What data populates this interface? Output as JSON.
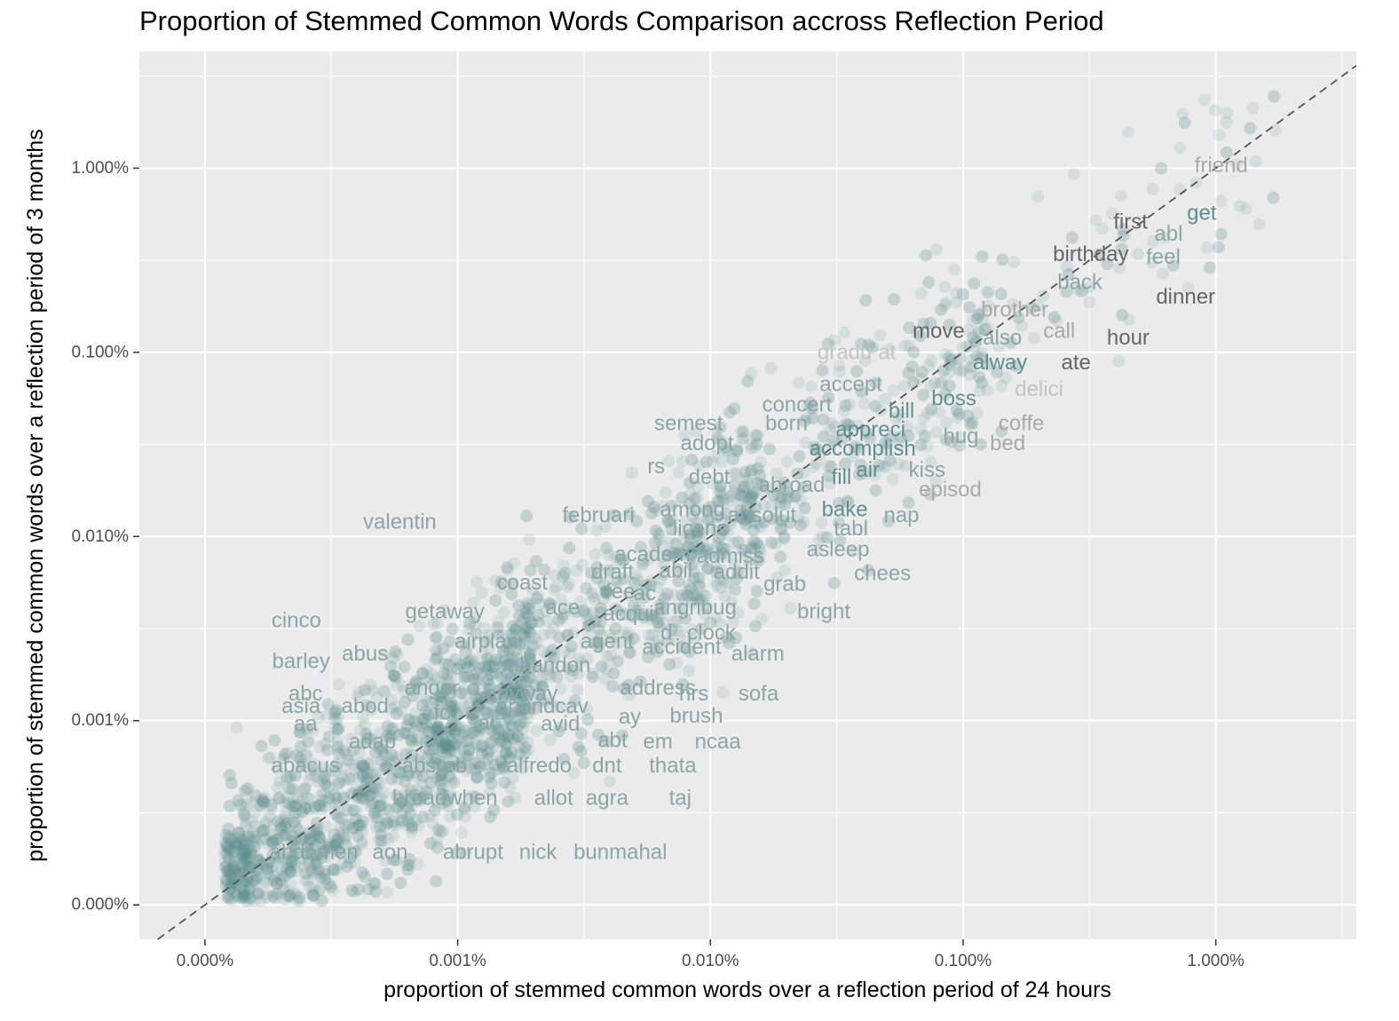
{
  "chart_data": {
    "type": "scatter",
    "title": "Proportion of Stemmed Common Words Comparison accross Reflection Period",
    "xlabel": "proportion of stemmed common words over a reflection period of 24 hours",
    "ylabel": "proportion of stemmed common words over a reflection period of 3 months",
    "x_scale": "log10",
    "y_scale": "log10",
    "x_ticks": [
      0.0001,
      0.001,
      0.01,
      0.1,
      1.0
    ],
    "x_tick_labels": [
      "0.000%",
      "0.001%",
      "0.010%",
      "0.100%",
      "1.000%"
    ],
    "y_ticks": [
      0.0001,
      0.001,
      0.01,
      0.1,
      1.0
    ],
    "y_tick_labels": [
      "0.000%",
      "0.001%",
      "0.010%",
      "0.100%",
      "1.000%"
    ],
    "xlim": [
      5.5e-05,
      3.6
    ],
    "ylim": [
      6.5e-05,
      4.3
    ],
    "grid": true,
    "reference_line": "y = x (dashed)",
    "point_color": "#5f8f8f",
    "point_opacity": 0.14,
    "background_color": "#ebebeb",
    "approx_point_count": 3000,
    "labeled_words": [
      {
        "word": "friend",
        "x": 1.05,
        "y": 1.03,
        "color": "#a9a9a9"
      },
      {
        "word": "get",
        "x": 0.88,
        "y": 0.57,
        "color": "#5f8f8f"
      },
      {
        "word": "first",
        "x": 0.46,
        "y": 0.51,
        "color": "#666666"
      },
      {
        "word": "abl",
        "x": 0.65,
        "y": 0.44,
        "color": "#8aa6a6"
      },
      {
        "word": "birthday",
        "x": 0.32,
        "y": 0.34,
        "color": "#666666"
      },
      {
        "word": "feel",
        "x": 0.62,
        "y": 0.33,
        "color": "#8aa6a6"
      },
      {
        "word": "back",
        "x": 0.29,
        "y": 0.24,
        "color": "#8aa6a6"
      },
      {
        "word": "dinner",
        "x": 0.76,
        "y": 0.2,
        "color": "#666666"
      },
      {
        "word": "brother",
        "x": 0.16,
        "y": 0.17,
        "color": "#a9a9a9"
      },
      {
        "word": "move",
        "x": 0.08,
        "y": 0.13,
        "color": "#666666"
      },
      {
        "word": "call",
        "x": 0.24,
        "y": 0.13,
        "color": "#a9a9a9"
      },
      {
        "word": "also",
        "x": 0.143,
        "y": 0.12,
        "color": "#8aa6a6"
      },
      {
        "word": "hour",
        "x": 0.45,
        "y": 0.12,
        "color": "#666666"
      },
      {
        "word": "gradu",
        "x": 0.034,
        "y": 0.1,
        "color": "#c4c4c4"
      },
      {
        "word": "at",
        "x": 0.05,
        "y": 0.1,
        "color": "#c4c4c4"
      },
      {
        "word": "alway",
        "x": 0.14,
        "y": 0.088,
        "color": "#5f8f8f"
      },
      {
        "word": "ate",
        "x": 0.28,
        "y": 0.088,
        "color": "#666666"
      },
      {
        "word": "accept",
        "x": 0.036,
        "y": 0.067,
        "color": "#8aa6a6"
      },
      {
        "word": "boss",
        "x": 0.092,
        "y": 0.056,
        "color": "#5f8f8f"
      },
      {
        "word": "delici",
        "x": 0.2,
        "y": 0.063,
        "color": "#c4c4c4"
      },
      {
        "word": "concert",
        "x": 0.022,
        "y": 0.052,
        "color": "#8aa6a6"
      },
      {
        "word": "bill",
        "x": 0.057,
        "y": 0.048,
        "color": "#5f8f8f"
      },
      {
        "word": "semest",
        "x": 0.0082,
        "y": 0.041,
        "color": "#8aa6a6"
      },
      {
        "word": "born",
        "x": 0.02,
        "y": 0.041,
        "color": "#8aa6a6"
      },
      {
        "word": "appreci",
        "x": 0.043,
        "y": 0.038,
        "color": "#5f8f8f"
      },
      {
        "word": "coffe",
        "x": 0.17,
        "y": 0.041,
        "color": "#a9a9a9"
      },
      {
        "word": "hug",
        "x": 0.098,
        "y": 0.035,
        "color": "#8aa6a6"
      },
      {
        "word": "bed",
        "x": 0.15,
        "y": 0.032,
        "color": "#a9a9a9"
      },
      {
        "word": "adopt",
        "x": 0.0097,
        "y": 0.032,
        "color": "#8aa6a6"
      },
      {
        "word": "accomplish",
        "x": 0.04,
        "y": 0.03,
        "color": "#5f8f8f"
      },
      {
        "word": "rs",
        "x": 0.0061,
        "y": 0.024,
        "color": "#8aa6a6"
      },
      {
        "word": "debt",
        "x": 0.0099,
        "y": 0.021,
        "color": "#8aa6a6"
      },
      {
        "word": "abroad",
        "x": 0.021,
        "y": 0.019,
        "color": "#8aa6a6"
      },
      {
        "word": "fill",
        "x": 0.033,
        "y": 0.021,
        "color": "#5f8f8f"
      },
      {
        "word": "air",
        "x": 0.042,
        "y": 0.023,
        "color": "#5f8f8f"
      },
      {
        "word": "kiss",
        "x": 0.072,
        "y": 0.023,
        "color": "#8aa6a6"
      },
      {
        "word": "episod",
        "x": 0.089,
        "y": 0.018,
        "color": "#a9a9a9"
      },
      {
        "word": "februari",
        "x": 0.0036,
        "y": 0.013,
        "color": "#8aa6a6"
      },
      {
        "word": "among",
        "x": 0.0085,
        "y": 0.014,
        "color": "#8aa6a6"
      },
      {
        "word": "absolut",
        "x": 0.016,
        "y": 0.013,
        "color": "#8aa6a6"
      },
      {
        "word": "bake",
        "x": 0.034,
        "y": 0.014,
        "color": "#5f8f8f"
      },
      {
        "word": "valentin",
        "x": 0.00059,
        "y": 0.012,
        "color": "#8aa6a6"
      },
      {
        "word": "nap",
        "x": 0.057,
        "y": 0.013,
        "color": "#8aa6a6"
      },
      {
        "word": "licens",
        "x": 0.0091,
        "y": 0.011,
        "color": "#8aa6a6"
      },
      {
        "word": "tabl",
        "x": 0.036,
        "y": 0.011,
        "color": "#8aa6a6"
      },
      {
        "word": "academ",
        "x": 0.0059,
        "y": 0.008,
        "color": "#8aa6a6"
      },
      {
        "word": "admiss",
        "x": 0.012,
        "y": 0.0078,
        "color": "#8aa6a6"
      },
      {
        "word": "asleep",
        "x": 0.032,
        "y": 0.0085,
        "color": "#8aa6a6"
      },
      {
        "word": "draft",
        "x": 0.0041,
        "y": 0.0064,
        "color": "#8aa6a6"
      },
      {
        "word": "abil",
        "x": 0.0073,
        "y": 0.0065,
        "color": "#8aa6a6"
      },
      {
        "word": "addit",
        "x": 0.0127,
        "y": 0.0064,
        "color": "#8aa6a6"
      },
      {
        "word": "chees",
        "x": 0.048,
        "y": 0.0063,
        "color": "#8aa6a6"
      },
      {
        "word": "coast",
        "x": 0.0018,
        "y": 0.0056,
        "color": "#8aa6a6"
      },
      {
        "word": "fee",
        "x": 0.0044,
        "y": 0.005,
        "color": "#8aa6a6"
      },
      {
        "word": "ac",
        "x": 0.0055,
        "y": 0.0049,
        "color": "#8aa6a6"
      },
      {
        "word": "grab",
        "x": 0.0197,
        "y": 0.0055,
        "color": "#8aa6a6"
      },
      {
        "word": "cinco",
        "x": 0.00023,
        "y": 0.0035,
        "color": "#8aa6a6"
      },
      {
        "word": "getaway",
        "x": 0.00089,
        "y": 0.0039,
        "color": "#8aa6a6"
      },
      {
        "word": "ace",
        "x": 0.0026,
        "y": 0.0041,
        "color": "#8aa6a6"
      },
      {
        "word": "acquir",
        "x": 0.0049,
        "y": 0.0038,
        "color": "#8aa6a6"
      },
      {
        "word": "angribug",
        "x": 0.0087,
        "y": 0.0041,
        "color": "#8aa6a6"
      },
      {
        "word": "bright",
        "x": 0.0281,
        "y": 0.0039,
        "color": "#8aa6a6"
      },
      {
        "word": "airplan",
        "x": 0.0013,
        "y": 0.0027,
        "color": "#8aa6a6"
      },
      {
        "word": "agent",
        "x": 0.0039,
        "y": 0.0027,
        "color": "#8aa6a6"
      },
      {
        "word": "d",
        "x": 0.0067,
        "y": 0.003,
        "color": "#8aa6a6"
      },
      {
        "word": "clock",
        "x": 0.0101,
        "y": 0.003,
        "color": "#8aa6a6"
      },
      {
        "word": "accident",
        "x": 0.0077,
        "y": 0.0025,
        "color": "#8aa6a6"
      },
      {
        "word": "alarm",
        "x": 0.0154,
        "y": 0.0023,
        "color": "#8aa6a6"
      },
      {
        "word": "barley",
        "x": 0.00024,
        "y": 0.0021,
        "color": "#8aa6a6"
      },
      {
        "word": "abus",
        "x": 0.00043,
        "y": 0.0023,
        "color": "#8aa6a6"
      },
      {
        "word": "abandon",
        "x": 0.0023,
        "y": 0.002,
        "color": "#8aa6a6"
      },
      {
        "word": "anger",
        "x": 0.00079,
        "y": 0.0015,
        "color": "#8aa6a6"
      },
      {
        "word": "anyway",
        "x": 0.00179,
        "y": 0.0014,
        "color": "#8aa6a6"
      },
      {
        "word": "address",
        "x": 0.0062,
        "y": 0.0015,
        "color": "#8aa6a6"
      },
      {
        "word": "abc",
        "x": 0.00025,
        "y": 0.0014,
        "color": "#8aa6a6"
      },
      {
        "word": "hrs",
        "x": 0.0086,
        "y": 0.0014,
        "color": "#8aa6a6"
      },
      {
        "word": "sofa",
        "x": 0.0155,
        "y": 0.0014,
        "color": "#8aa6a6"
      },
      {
        "word": "asia",
        "x": 0.00024,
        "y": 0.0012,
        "color": "#8aa6a6"
      },
      {
        "word": "abod",
        "x": 0.00043,
        "y": 0.0012,
        "color": "#8aa6a6"
      },
      {
        "word": "abundcav",
        "x": 0.00216,
        "y": 0.0012,
        "color": "#8aa6a6"
      },
      {
        "word": "fo",
        "x": 0.00087,
        "y": 0.0011,
        "color": "#8aa6a6"
      },
      {
        "word": "ay",
        "x": 0.0048,
        "y": 0.00105,
        "color": "#8aa6a6"
      },
      {
        "word": "brush",
        "x": 0.0088,
        "y": 0.00106,
        "color": "#8aa6a6"
      },
      {
        "word": "aa",
        "x": 0.00025,
        "y": 0.00096,
        "color": "#8aa6a6"
      },
      {
        "word": "al",
        "x": 0.0013,
        "y": 0.00097,
        "color": "#8aa6a6"
      },
      {
        "word": "avid",
        "x": 0.00255,
        "y": 0.00096,
        "color": "#8aa6a6"
      },
      {
        "word": "adap",
        "x": 0.00046,
        "y": 0.00077,
        "color": "#8aa6a6"
      },
      {
        "word": "abt",
        "x": 0.0041,
        "y": 0.00078,
        "color": "#8aa6a6"
      },
      {
        "word": "em",
        "x": 0.0062,
        "y": 0.00077,
        "color": "#8aa6a6"
      },
      {
        "word": "ncaa",
        "x": 0.0107,
        "y": 0.00077,
        "color": "#8aa6a6"
      },
      {
        "word": "abacus",
        "x": 0.00025,
        "y": 0.00057,
        "color": "#8aa6a6"
      },
      {
        "word": "absorb",
        "x": 0.00081,
        "y": 0.00057,
        "color": "#8aa6a6"
      },
      {
        "word": "alfredo",
        "x": 0.0021,
        "y": 0.00057,
        "color": "#8aa6a6"
      },
      {
        "word": "dnt",
        "x": 0.0039,
        "y": 0.00057,
        "color": "#8aa6a6"
      },
      {
        "word": "thata",
        "x": 0.0071,
        "y": 0.00057,
        "color": "#8aa6a6"
      },
      {
        "word": "broadwhen",
        "x": 0.00089,
        "y": 0.00038,
        "color": "#8aa6a6"
      },
      {
        "word": "allot",
        "x": 0.0024,
        "y": 0.00038,
        "color": "#8aa6a6"
      },
      {
        "word": "agra",
        "x": 0.0039,
        "y": 0.00038,
        "color": "#8aa6a6"
      },
      {
        "word": "taj",
        "x": 0.0076,
        "y": 0.00038,
        "color": "#8aa6a6"
      },
      {
        "word": "abdomen",
        "x": 0.00027,
        "y": 0.000193,
        "color": "#8aa6a6"
      },
      {
        "word": "aon",
        "x": 0.00054,
        "y": 0.000193,
        "color": "#8aa6a6"
      },
      {
        "word": "abrupt",
        "x": 0.00115,
        "y": 0.000193,
        "color": "#8aa6a6"
      },
      {
        "word": "nick",
        "x": 0.00208,
        "y": 0.000193,
        "color": "#8aa6a6"
      },
      {
        "word": "bunmahal",
        "x": 0.0044,
        "y": 0.000193,
        "color": "#8aa6a6"
      }
    ]
  }
}
